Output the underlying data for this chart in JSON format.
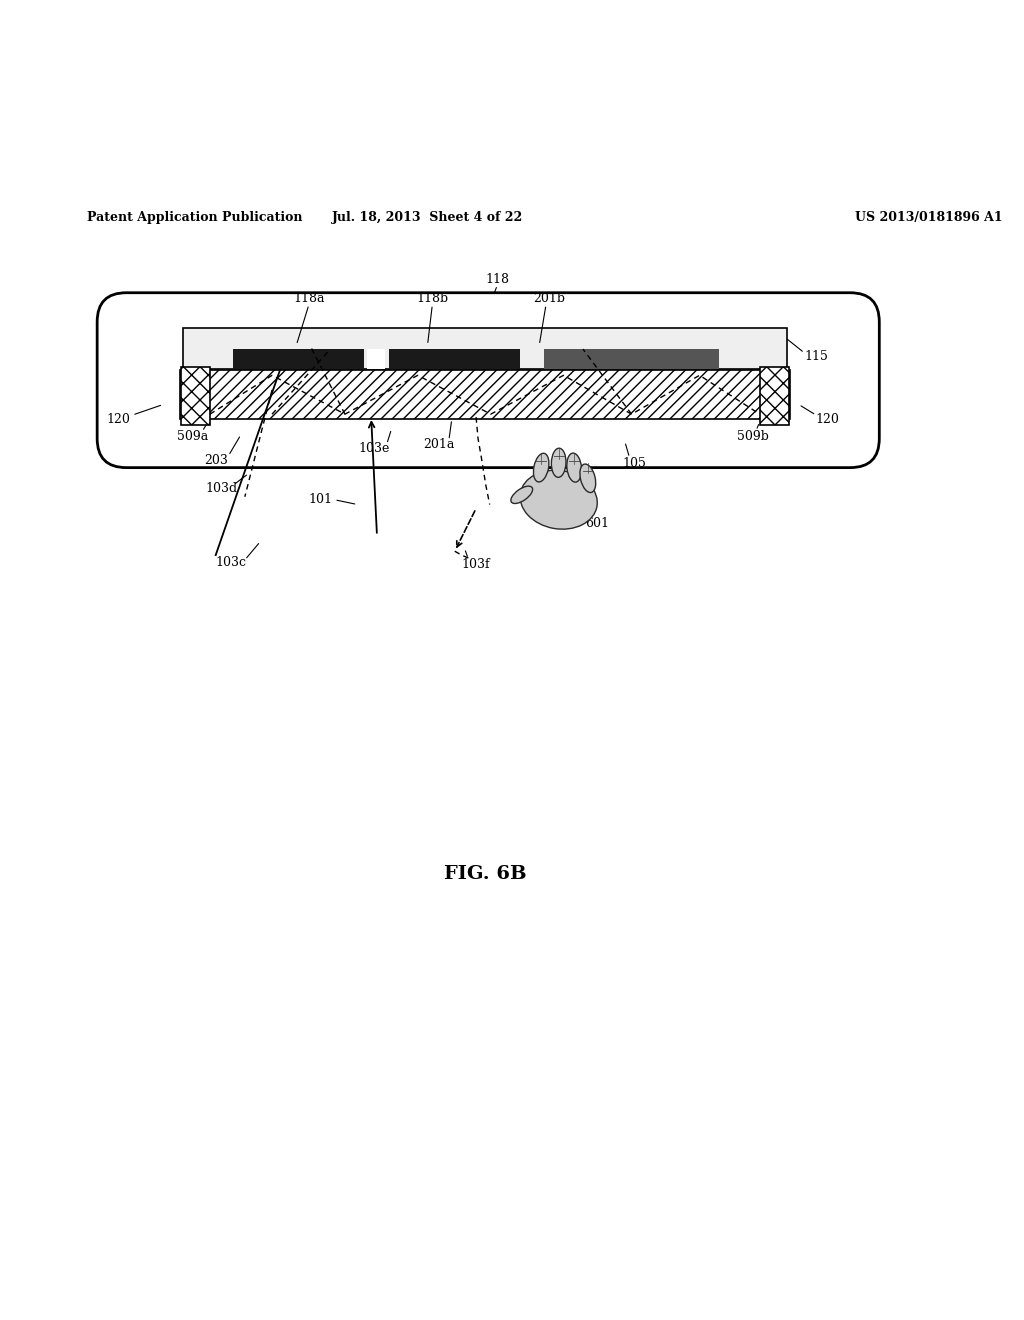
{
  "bg_color": "#ffffff",
  "header_left": "Patent Application Publication",
  "header_mid": "Jul. 18, 2013  Sheet 4 of 22",
  "header_right": "US 2013/0181896 A1",
  "fig_label": "FIG. 6B"
}
